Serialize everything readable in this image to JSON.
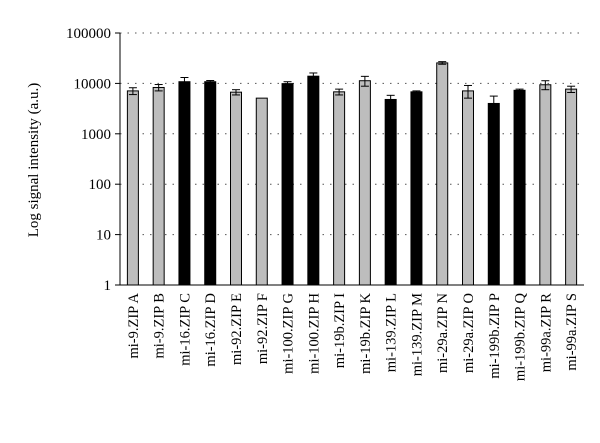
{
  "chart_data": {
    "type": "bar",
    "ylabel": "Log signal intensity (a.u.)",
    "yscale": "log",
    "ylim": [
      1,
      100000
    ],
    "yticks": [
      {
        "value": 1,
        "label": "1"
      },
      {
        "value": 10,
        "label": "10"
      },
      {
        "value": 100,
        "label": "100"
      },
      {
        "value": 1000,
        "label": "1000"
      },
      {
        "value": 10000,
        "label": "10000"
      },
      {
        "value": 100000,
        "label": "100000"
      }
    ],
    "grid": "horizontal dotted",
    "colors": {
      "gray": "#bdbdbd",
      "black": "#000000"
    },
    "bars": [
      {
        "label": "mi-9.ZIP A",
        "value": 7100,
        "err": 1100,
        "color": "gray"
      },
      {
        "label": "mi-9.ZIP B",
        "value": 8300,
        "err": 1200,
        "color": "gray"
      },
      {
        "label": "mi-16.ZIP C",
        "value": 10800,
        "err": 2300,
        "color": "black"
      },
      {
        "label": "mi-16.ZIP D",
        "value": 10800,
        "err": 600,
        "color": "black"
      },
      {
        "label": "mi-92.ZIP E",
        "value": 6700,
        "err": 800,
        "color": "gray"
      },
      {
        "label": "mi-92.ZIP F",
        "value": 5100,
        "err": 0,
        "color": "gray"
      },
      {
        "label": "mi-100.ZIP G",
        "value": 9900,
        "err": 900,
        "color": "black"
      },
      {
        "label": "mi-100.ZIP H",
        "value": 13900,
        "err": 2200,
        "color": "black"
      },
      {
        "label": "mi-19b.ZIP I",
        "value": 6800,
        "err": 900,
        "color": "gray"
      },
      {
        "label": "mi-19b.ZIP K",
        "value": 11300,
        "err": 2500,
        "color": "gray"
      },
      {
        "label": "mi-139.ZIP L",
        "value": 4800,
        "err": 1000,
        "color": "black"
      },
      {
        "label": "mi-139.ZIP M",
        "value": 6800,
        "err": 300,
        "color": "black"
      },
      {
        "label": "mi-29a.ZIP N",
        "value": 25500,
        "err": 1500,
        "color": "gray"
      },
      {
        "label": "mi-29a.ZIP O",
        "value": 7100,
        "err": 2000,
        "color": "gray"
      },
      {
        "label": "mi-199b.ZIP P",
        "value": 4000,
        "err": 1600,
        "color": "black"
      },
      {
        "label": "mi-199b.ZIP Q",
        "value": 7300,
        "err": 400,
        "color": "black"
      },
      {
        "label": "mi-99a.ZIP R",
        "value": 9400,
        "err": 1900,
        "color": "gray"
      },
      {
        "label": "mi-99a.ZIP S",
        "value": 7700,
        "err": 1100,
        "color": "gray"
      }
    ]
  }
}
